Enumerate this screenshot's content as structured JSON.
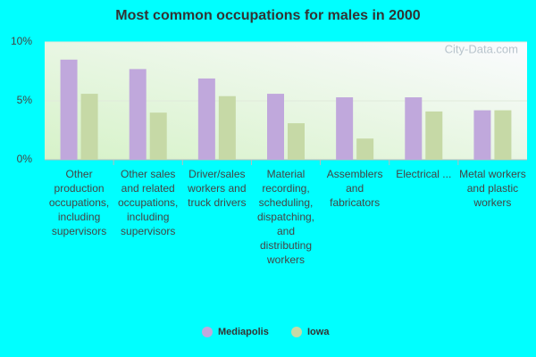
{
  "chart_data": {
    "type": "bar",
    "title": "Most common occupations for males in 2000",
    "categories": [
      "Other production occupations, including supervisors",
      "Other sales and related occupations, including supervisors",
      "Driver/sales workers and truck drivers",
      "Material recording, scheduling, dispatching, and distributing workers",
      "Assemblers and fabricators",
      "Electrical ...",
      "Metal workers and plastic workers"
    ],
    "series": [
      {
        "name": "Mediapolis",
        "color": "#c0a8dc",
        "values": [
          8.5,
          7.7,
          6.9,
          5.6,
          5.3,
          5.3,
          4.2
        ]
      },
      {
        "name": "Iowa",
        "color": "#c6d9a6",
        "values": [
          5.6,
          4.0,
          5.4,
          3.1,
          1.8,
          4.1,
          4.2
        ]
      }
    ],
    "ylim": [
      0,
      10
    ],
    "yticks": [
      {
        "value": 0,
        "label": "0%"
      },
      {
        "value": 5,
        "label": "5%"
      },
      {
        "value": 10,
        "label": "10%"
      }
    ],
    "grid": true,
    "legend": "bottom",
    "watermark": "City-Data.com"
  }
}
